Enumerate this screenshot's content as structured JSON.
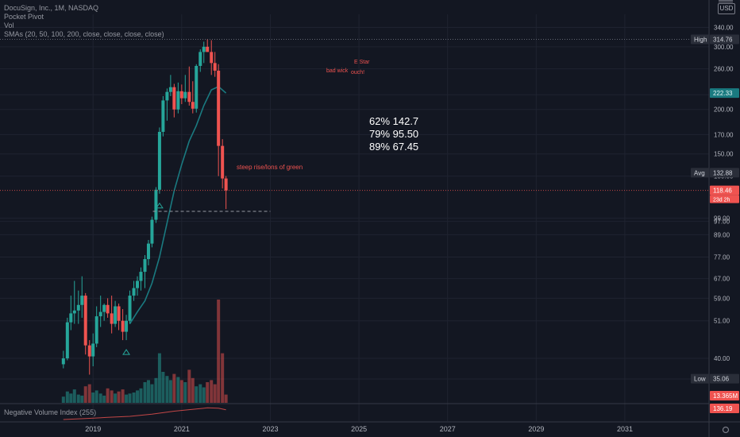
{
  "legend": {
    "title": "DocuSign, Inc., 1M, NASDAQ",
    "line2": "Pocket Pivot",
    "line3": "Vol",
    "line4": "SMAs (20, 50, 100, 200, close, close, close, close)"
  },
  "currency": "USD",
  "nvi_label": "Negative Volume Index (255)",
  "colors": {
    "background": "#131722",
    "up": "#26a69a",
    "down": "#ef5350",
    "sma": "#1a7a80",
    "grid": "#1f2330",
    "axis_text": "#b2b5be",
    "annotation_red": "#ef5350",
    "annotation_white": "#ffffff"
  },
  "chart_data": {
    "type": "candlestick",
    "timeframe": "1M",
    "y_scale": "log",
    "y_ticks": [
      340,
      300,
      260,
      220,
      200,
      170,
      150,
      130,
      99,
      97,
      89,
      77,
      67,
      59,
      51,
      40,
      35
    ],
    "y_tick_labels": [
      "340.00",
      "300.00",
      "260.00",
      "220.00",
      "200.00",
      "170.00",
      "150.00",
      "130.00",
      "99.00",
      "97.00",
      "89.00",
      "77.00",
      "67.00",
      "59.00",
      "51.00",
      "40.00",
      "35.00"
    ],
    "x_ticks": [
      2019,
      2021,
      2023,
      2025,
      2027,
      2029,
      2031
    ],
    "x_tick_labels": [
      "2019",
      "2021",
      "2023",
      "2025",
      "2027",
      "2029",
      "2031"
    ],
    "x_range": [
      2016.9,
      2032.9
    ],
    "y_range": [
      30,
      370
    ],
    "candles": [
      {
        "t": 2018.33,
        "o": 38.5,
        "h": 42.0,
        "l": 37.5,
        "c": 40.0
      },
      {
        "t": 2018.42,
        "o": 40.0,
        "h": 52.0,
        "l": 39.5,
        "c": 50.5
      },
      {
        "t": 2018.5,
        "o": 50.5,
        "h": 60.0,
        "l": 48.0,
        "c": 53.5
      },
      {
        "t": 2018.58,
        "o": 53.5,
        "h": 66.0,
        "l": 50.0,
        "c": 54.5
      },
      {
        "t": 2018.67,
        "o": 54.5,
        "h": 62.0,
        "l": 50.0,
        "c": 56.5
      },
      {
        "t": 2018.75,
        "o": 56.5,
        "h": 68.0,
        "l": 52.0,
        "c": 60.0
      },
      {
        "t": 2018.83,
        "o": 60.0,
        "h": 61.0,
        "l": 41.0,
        "c": 43.5
      },
      {
        "t": 2018.92,
        "o": 43.5,
        "h": 45.0,
        "l": 36.0,
        "c": 40.5
      },
      {
        "t": 2019.0,
        "o": 40.5,
        "h": 47.0,
        "l": 38.0,
        "c": 44.0
      },
      {
        "t": 2019.08,
        "o": 44.0,
        "h": 56.0,
        "l": 43.0,
        "c": 52.5
      },
      {
        "t": 2019.17,
        "o": 52.5,
        "h": 60.0,
        "l": 49.0,
        "c": 54.0
      },
      {
        "t": 2019.25,
        "o": 54.0,
        "h": 57.0,
        "l": 51.0,
        "c": 56.5
      },
      {
        "t": 2019.33,
        "o": 56.5,
        "h": 59.0,
        "l": 52.0,
        "c": 53.5
      },
      {
        "t": 2019.42,
        "o": 53.5,
        "h": 60.0,
        "l": 47.0,
        "c": 50.0
      },
      {
        "t": 2019.5,
        "o": 50.0,
        "h": 58.0,
        "l": 49.0,
        "c": 56.0
      },
      {
        "t": 2019.58,
        "o": 56.0,
        "h": 57.0,
        "l": 48.0,
        "c": 51.0
      },
      {
        "t": 2019.67,
        "o": 51.0,
        "h": 55.0,
        "l": 45.0,
        "c": 47.5
      },
      {
        "t": 2019.75,
        "o": 47.5,
        "h": 53.0,
        "l": 45.0,
        "c": 51.0
      },
      {
        "t": 2019.83,
        "o": 51.0,
        "h": 62.0,
        "l": 50.0,
        "c": 60.0
      },
      {
        "t": 2019.92,
        "o": 60.0,
        "h": 66.0,
        "l": 58.0,
        "c": 63.0
      },
      {
        "t": 2020.0,
        "o": 63.0,
        "h": 68.0,
        "l": 60.0,
        "c": 66.0
      },
      {
        "t": 2020.08,
        "o": 66.0,
        "h": 72.0,
        "l": 62.0,
        "c": 70.0
      },
      {
        "t": 2020.17,
        "o": 70.0,
        "h": 78.0,
        "l": 63.0,
        "c": 76.0
      },
      {
        "t": 2020.25,
        "o": 76.0,
        "h": 86.0,
        "l": 73.0,
        "c": 84.0
      },
      {
        "t": 2020.33,
        "o": 84.0,
        "h": 100.0,
        "l": 82.0,
        "c": 98.0
      },
      {
        "t": 2020.42,
        "o": 98.0,
        "h": 121.0,
        "l": 96.0,
        "c": 119.0
      },
      {
        "t": 2020.5,
        "o": 119.0,
        "h": 178.0,
        "l": 116.0,
        "c": 173.0
      },
      {
        "t": 2020.58,
        "o": 173.0,
        "h": 218.0,
        "l": 168.0,
        "c": 212.0
      },
      {
        "t": 2020.67,
        "o": 212.0,
        "h": 229.0,
        "l": 186.0,
        "c": 224.0
      },
      {
        "t": 2020.75,
        "o": 224.0,
        "h": 250.0,
        "l": 218.0,
        "c": 231.0
      },
      {
        "t": 2020.83,
        "o": 231.0,
        "h": 236.0,
        "l": 190.0,
        "c": 200.0
      },
      {
        "t": 2020.92,
        "o": 200.0,
        "h": 238.0,
        "l": 195.0,
        "c": 225.0
      },
      {
        "t": 2021.0,
        "o": 225.0,
        "h": 235.0,
        "l": 207.0,
        "c": 215.0
      },
      {
        "t": 2021.08,
        "o": 215.0,
        "h": 250.0,
        "l": 210.0,
        "c": 224.0
      },
      {
        "t": 2021.17,
        "o": 224.0,
        "h": 264.0,
        "l": 205.0,
        "c": 210.0
      },
      {
        "t": 2021.25,
        "o": 210.0,
        "h": 240.0,
        "l": 195.0,
        "c": 201.0
      },
      {
        "t": 2021.33,
        "o": 201.0,
        "h": 268.0,
        "l": 196.0,
        "c": 265.0
      },
      {
        "t": 2021.42,
        "o": 265.0,
        "h": 295.0,
        "l": 255.0,
        "c": 290.0
      },
      {
        "t": 2021.5,
        "o": 290.0,
        "h": 310.0,
        "l": 270.0,
        "c": 300.0
      },
      {
        "t": 2021.58,
        "o": 300.0,
        "h": 314.76,
        "l": 290.0,
        "c": 290.0
      },
      {
        "t": 2021.67,
        "o": 290.0,
        "h": 313.0,
        "l": 250.0,
        "c": 270.0
      },
      {
        "t": 2021.75,
        "o": 270.0,
        "h": 290.0,
        "l": 247.0,
        "c": 257.0
      },
      {
        "t": 2021.83,
        "o": 257.0,
        "h": 268.0,
        "l": 130.0,
        "c": 158.0
      },
      {
        "t": 2021.92,
        "o": 158.0,
        "h": 165.0,
        "l": 120.0,
        "c": 128.0
      },
      {
        "t": 2022.0,
        "o": 128.0,
        "h": 130.0,
        "l": 105.0,
        "c": 118.46
      }
    ],
    "volume": [
      6,
      11,
      9,
      13,
      8,
      7,
      16,
      18,
      10,
      12,
      9,
      7,
      14,
      12,
      9,
      11,
      13,
      8,
      9,
      10,
      12,
      14,
      20,
      22,
      18,
      24,
      48,
      30,
      26,
      22,
      28,
      25,
      22,
      20,
      32,
      24,
      16,
      18,
      15,
      20,
      22,
      18,
      100,
      48,
      8
    ],
    "sma": [
      {
        "t": 2019.83,
        "v": 50.0
      },
      {
        "t": 2020.0,
        "v": 54.0
      },
      {
        "t": 2020.17,
        "v": 58.0
      },
      {
        "t": 2020.33,
        "v": 65.0
      },
      {
        "t": 2020.5,
        "v": 77.0
      },
      {
        "t": 2020.67,
        "v": 96.0
      },
      {
        "t": 2020.83,
        "v": 118.0
      },
      {
        "t": 2021.0,
        "v": 140.0
      },
      {
        "t": 2021.17,
        "v": 163.0
      },
      {
        "t": 2021.33,
        "v": 180.0
      },
      {
        "t": 2021.5,
        "v": 205.0
      },
      {
        "t": 2021.67,
        "v": 227.0
      },
      {
        "t": 2021.83,
        "v": 232.0
      },
      {
        "t": 2022.0,
        "v": 222.33
      }
    ],
    "nvi": [
      {
        "t": 2018.33,
        "v": 0.0
      },
      {
        "t": 2018.83,
        "v": 0.08
      },
      {
        "t": 2019.33,
        "v": 0.18
      },
      {
        "t": 2019.83,
        "v": 0.27
      },
      {
        "t": 2020.33,
        "v": 0.45
      },
      {
        "t": 2020.83,
        "v": 0.7
      },
      {
        "t": 2021.33,
        "v": 0.88
      },
      {
        "t": 2021.58,
        "v": 0.98
      },
      {
        "t": 2021.83,
        "v": 0.95
      },
      {
        "t": 2022.0,
        "v": 0.82
      }
    ],
    "pocket_pivots": [
      2019.75,
      2020.5
    ],
    "hlines": [
      {
        "name": "high-line",
        "value": 314.76,
        "style": "dotted"
      },
      {
        "name": "close-line",
        "value": 118.46,
        "style": "dotted"
      }
    ],
    "support_line": {
      "value": 103.5,
      "t_start": 2020.35,
      "t_end": 2023.0
    },
    "price_labels": [
      {
        "name": "high-label",
        "tag": "High",
        "value": 314.76,
        "value_text": "314.76",
        "color": "dark"
      },
      {
        "name": "sma-label",
        "tag": "",
        "value": 222.33,
        "value_text": "222.33",
        "color": "sma"
      },
      {
        "name": "avg-label",
        "tag": "Avg",
        "value": 132.88,
        "value_text": "132.88",
        "color": "dark"
      },
      {
        "name": "last-price-label",
        "tag": "",
        "value": 118.46,
        "value_text": "118.46",
        "color": "down",
        "sub": "23d 2h"
      },
      {
        "name": "low-label",
        "tag": "Low",
        "value": 35.06,
        "value_text": "35.06",
        "color": "dark"
      }
    ],
    "volume_label": {
      "value_text": "13.365M"
    },
    "nvi_value_label": {
      "value_text": "136.19"
    },
    "annotations": {
      "fib_lines": [
        "62%  142.7",
        "79%  95.50",
        "89%  67.45"
      ],
      "steep_rise": "steep rise/lons of green",
      "bad_wick": "bad wick",
      "e_star": "E Star",
      "ouch": "ouch!"
    }
  }
}
